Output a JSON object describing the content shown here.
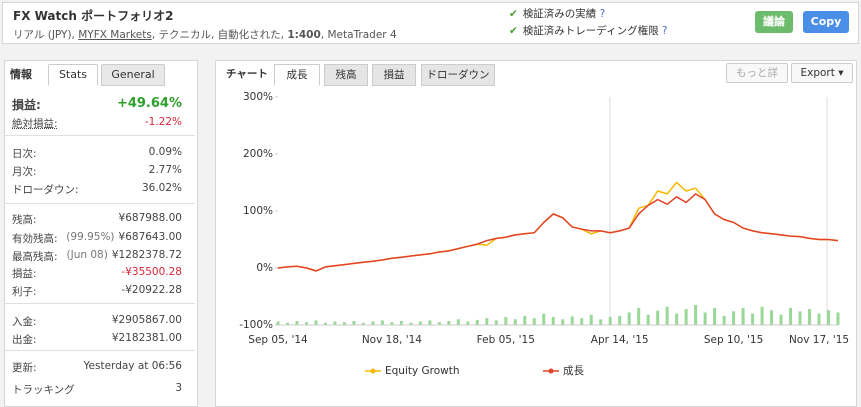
{
  "header": {
    "title": "FX Watch ポートフォリオ2",
    "info": [
      "リアル (JPY), ",
      "MYFX Markets",
      ", テクニカル, 自動化された, ",
      "1:400",
      ", MetaTrader 4"
    ],
    "checks": [
      "検証済みの実績",
      "検証済みトレーディング権限"
    ],
    "buttons": [
      "議論",
      "Copy"
    ]
  },
  "left_panel": {
    "tabs": [
      "情報",
      "Stats",
      "General"
    ],
    "sections": [
      [
        {
          "label": "損益:",
          "value": "+49.64%"
        },
        {
          "label": "絶対損益:",
          "value": "-1.22%"
        }
      ],
      [
        {
          "label": "日次:",
          "value": "0.09%"
        },
        {
          "label": "月次:",
          "value": "2.77%"
        },
        {
          "label": "ドローダウン:",
          "value": "36.02%"
        }
      ],
      [
        {
          "label": "残高:",
          "value": "¥687988.00"
        },
        {
          "label": "有効残高:",
          "note": "(99.95%)",
          "value": "¥687643.00"
        },
        {
          "label": "最高残高:",
          "note": "(Jun 08)",
          "value": "¥1282378.72"
        },
        {
          "label": "損益:",
          "value": "-¥35500.28"
        },
        {
          "label": "利子:",
          "value": "-¥20922.28"
        }
      ],
      [
        {
          "label": "入金:",
          "value": "¥2905867.00"
        },
        {
          "label": "出金:",
          "value": "¥2182381.00"
        }
      ],
      [
        {
          "label": "更新:",
          "value": "Yesterday at 06:56"
        },
        {
          "label": "トラッキング",
          "value": "3"
        }
      ]
    ]
  },
  "chart_tabs": [
    "チャート",
    "成長",
    "残高",
    "損益",
    "ドローダウン"
  ],
  "chart_buttons": [
    "もっと詳",
    "Export"
  ],
  "chart_data": {
    "type": "line",
    "categories": [
      "Sep 05, '14",
      null,
      null,
      null,
      null,
      null,
      null,
      null,
      null,
      null,
      null,
      null,
      "Nov 18, '14",
      null,
      null,
      null,
      null,
      null,
      null,
      null,
      null,
      null,
      null,
      null,
      "Feb 05, '15",
      null,
      null,
      null,
      null,
      null,
      null,
      null,
      null,
      null,
      null,
      null,
      "Apr 14, '15",
      null,
      null,
      null,
      null,
      null,
      null,
      null,
      null,
      null,
      null,
      null,
      "Sep 10, '15",
      null,
      null,
      null,
      null,
      null,
      null,
      null,
      null,
      "Nov 17, '15",
      null,
      null
    ],
    "series": [
      {
        "name": "Equity Growth",
        "color": "#f5b800",
        "values": [
          0,
          2,
          3,
          0,
          -5,
          2,
          4,
          6,
          8,
          10,
          12,
          14,
          17,
          19,
          21,
          23,
          25,
          28,
          30,
          34,
          38,
          42,
          40,
          52,
          54,
          58,
          60,
          62,
          80,
          95,
          88,
          72,
          68,
          60,
          65,
          62,
          65,
          70,
          105,
          110,
          135,
          130,
          150,
          135,
          140,
          120,
          95,
          85,
          80,
          70,
          65,
          62,
          60,
          58,
          56,
          55,
          52,
          50,
          50,
          48
        ]
      },
      {
        "name": "成長",
        "color": "#e2432a",
        "values": [
          0,
          2,
          3,
          0,
          -5,
          2,
          4,
          6,
          8,
          10,
          12,
          14,
          17,
          19,
          21,
          23,
          25,
          28,
          30,
          34,
          38,
          42,
          48,
          52,
          54,
          58,
          60,
          62,
          80,
          95,
          88,
          72,
          68,
          65,
          65,
          62,
          65,
          70,
          95,
          110,
          120,
          112,
          125,
          115,
          130,
          120,
          95,
          85,
          80,
          70,
          65,
          62,
          60,
          58,
          56,
          55,
          52,
          50,
          50,
          48
        ]
      }
    ],
    "bars": {
      "color": "#9ad89a",
      "values": [
        -94,
        -96,
        -93,
        -95,
        -92,
        -96,
        -94,
        -95,
        -93,
        -96,
        -94,
        -92,
        -95,
        -93,
        -96,
        -94,
        -92,
        -95,
        -93,
        -90,
        -94,
        -91,
        -88,
        -92,
        -86,
        -90,
        -84,
        -88,
        -80,
        -86,
        -90,
        -85,
        -88,
        -82,
        -90,
        -86,
        -84,
        -78,
        -70,
        -82,
        -75,
        -68,
        -80,
        -72,
        -65,
        -78,
        -70,
        -84,
        -76,
        -70,
        -80,
        -68,
        -74,
        -82,
        -70,
        -76,
        -72,
        -80,
        -74,
        -78
      ]
    },
    "ylim": [
      -100,
      300
    ],
    "yticks": [
      {
        "value": -100,
        "label": "-100%"
      },
      {
        "value": 0,
        "label": "0%"
      },
      {
        "value": 100,
        "label": "100%"
      },
      {
        "value": 200,
        "label": "200%"
      },
      {
        "value": 300,
        "label": "300%"
      }
    ]
  }
}
